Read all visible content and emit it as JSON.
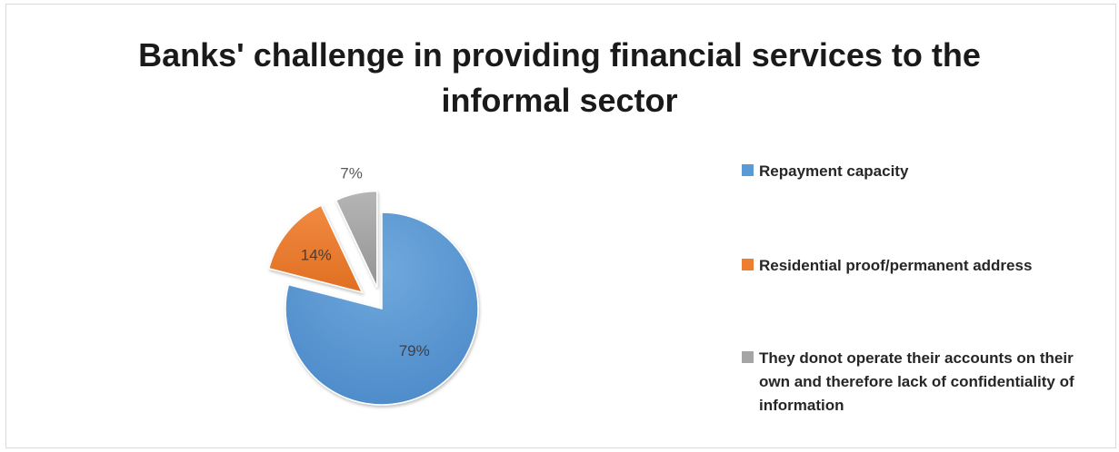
{
  "chart_data": {
    "type": "pie",
    "title": "Banks' challenge in providing financial services to the informal sector",
    "title_lines": [
      "Banks' challenge in providing financial services to the",
      "informal sector"
    ],
    "series": [
      {
        "categories": [
          "Repayment capacity",
          "Residential proof/permanent address",
          "They donot operate their accounts on their own and therefore lack of confidentiality of information"
        ],
        "values": [
          79,
          14,
          7
        ],
        "data_labels": [
          "79%",
          "14%",
          "7%"
        ],
        "colors": [
          "#5b9bd5",
          "#ed7d31",
          "#a5a5a5"
        ]
      }
    ],
    "exploded": true,
    "legend_position": "right"
  },
  "legend": {
    "items": [
      {
        "label": "Repayment capacity",
        "color": "#5b9bd5"
      },
      {
        "label": "Residential proof/permanent address",
        "color": "#ed7d31"
      },
      {
        "label": "They donot operate their accounts on their own and therefore lack of confidentiality of information",
        "color": "#a5a5a5"
      }
    ]
  }
}
